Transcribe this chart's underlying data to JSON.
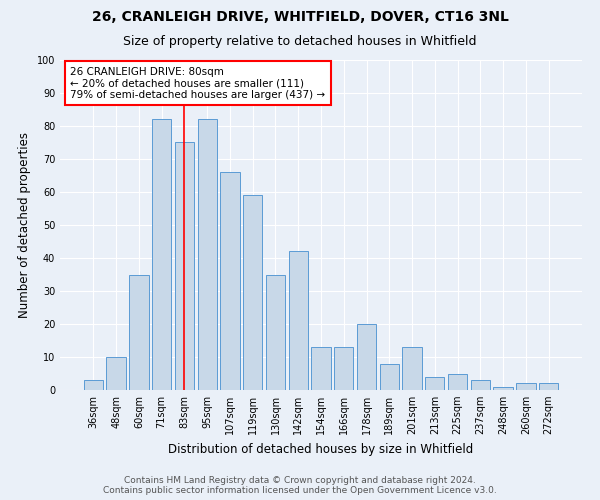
{
  "title1": "26, CRANLEIGH DRIVE, WHITFIELD, DOVER, CT16 3NL",
  "title2": "Size of property relative to detached houses in Whitfield",
  "xlabel": "Distribution of detached houses by size in Whitfield",
  "ylabel": "Number of detached properties",
  "bar_labels": [
    "36sqm",
    "48sqm",
    "60sqm",
    "71sqm",
    "83sqm",
    "95sqm",
    "107sqm",
    "119sqm",
    "130sqm",
    "142sqm",
    "154sqm",
    "166sqm",
    "178sqm",
    "189sqm",
    "201sqm",
    "213sqm",
    "225sqm",
    "237sqm",
    "248sqm",
    "260sqm",
    "272sqm"
  ],
  "bar_values": [
    3,
    10,
    35,
    82,
    75,
    82,
    66,
    59,
    35,
    42,
    13,
    13,
    20,
    8,
    13,
    4,
    5,
    3,
    1,
    2,
    2
  ],
  "bar_color": "#c8d8e8",
  "bar_edge_color": "#5b9bd5",
  "annotation_line_x_label": "83sqm",
  "annotation_text": "26 CRANLEIGH DRIVE: 80sqm\n← 20% of detached houses are smaller (111)\n79% of semi-detached houses are larger (437) →",
  "annotation_box_color": "white",
  "annotation_box_edge_color": "red",
  "vline_color": "red",
  "background_color": "#eaf0f8",
  "grid_color": "white",
  "footer_line1": "Contains HM Land Registry data © Crown copyright and database right 2024.",
  "footer_line2": "Contains public sector information licensed under the Open Government Licence v3.0.",
  "ylim": [
    0,
    100
  ],
  "title1_fontsize": 10,
  "title2_fontsize": 9,
  "xlabel_fontsize": 8.5,
  "ylabel_fontsize": 8.5,
  "tick_fontsize": 7,
  "annotation_fontsize": 7.5,
  "footer_fontsize": 6.5
}
